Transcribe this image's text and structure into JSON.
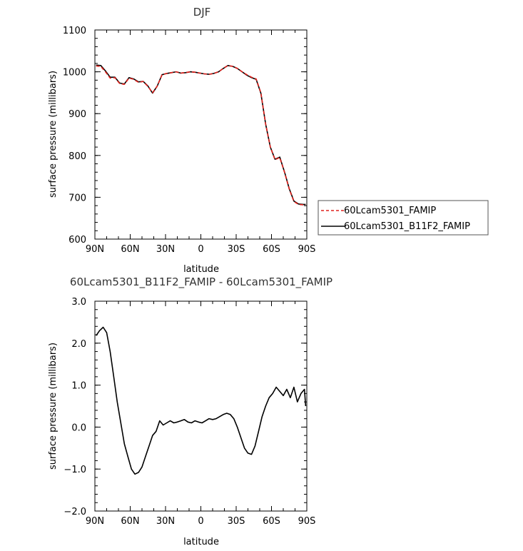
{
  "chart_data": [
    {
      "type": "line",
      "title": "DJF",
      "xlabel": "latitude",
      "ylabel": "surface pressure (millibars)",
      "xlim": [
        90,
        -90
      ],
      "ylim": [
        600,
        1100
      ],
      "xticks": [
        90,
        60,
        30,
        0,
        -30,
        -60,
        -90
      ],
      "xtick_labels": [
        "90N",
        "60N",
        "30N",
        "0",
        "30S",
        "60S",
        "90S"
      ],
      "yticks": [
        600,
        700,
        800,
        900,
        1000,
        1100
      ],
      "ytick_labels": [
        "600",
        "700",
        "800",
        "900",
        "1000",
        "1100"
      ],
      "legend_position": "outside-right",
      "x": [
        89,
        85,
        81,
        77,
        73,
        69,
        65,
        61,
        57,
        53,
        49,
        45,
        41,
        37,
        33,
        29,
        25,
        21,
        17,
        13,
        9,
        5,
        1,
        -3,
        -7,
        -11,
        -15,
        -19,
        -23,
        -27,
        -31,
        -35,
        -39,
        -43,
        -47,
        -51,
        -55,
        -59,
        -63,
        -67,
        -71,
        -75,
        -79,
        -83,
        -87,
        -89
      ],
      "series": [
        {
          "name": "60Lcam5301_FAMIP",
          "color": "#e0201b",
          "dash": "dashed",
          "values": [
            1014,
            1013,
            1000,
            985,
            986,
            972,
            970,
            985,
            982,
            975,
            977,
            965,
            950,
            966,
            993,
            996,
            998,
            1000,
            997,
            998,
            1000,
            999,
            997,
            995,
            994,
            996,
            1000,
            1008,
            1015,
            1013,
            1008,
            1000,
            993,
            987,
            983,
            950,
            875,
            820,
            790,
            795,
            760,
            720,
            690,
            683,
            682,
            682
          ]
        },
        {
          "name": "60Lcam5301_B11F2_FAMIP",
          "color": "#000000",
          "dash": "solid",
          "values": [
            1016,
            1015,
            1002,
            987,
            987,
            973,
            971,
            986,
            983,
            976,
            977,
            966,
            949,
            966,
            993,
            996,
            998,
            1000,
            997,
            998,
            1000,
            999,
            997,
            995,
            994,
            996,
            1000,
            1008,
            1015,
            1013,
            1008,
            1000,
            992,
            986,
            982,
            949,
            875,
            820,
            791,
            796,
            761,
            721,
            691,
            684,
            683,
            683
          ]
        }
      ]
    },
    {
      "type": "line",
      "title": "60Lcam5301_B11F2_FAMIP - 60Lcam5301_FAMIP",
      "xlabel": "latitude",
      "ylabel": "surface pressure (millibars)",
      "xlim": [
        90,
        -90
      ],
      "ylim": [
        -2.0,
        3.0
      ],
      "xticks": [
        90,
        60,
        30,
        0,
        -30,
        -60,
        -90
      ],
      "xtick_labels": [
        "90N",
        "60N",
        "30N",
        "0",
        "30S",
        "60S",
        "90S"
      ],
      "yticks": [
        -2.0,
        -1.0,
        0.0,
        1.0,
        2.0,
        3.0
      ],
      "ytick_labels": [
        "−2.0",
        "−1.0",
        "0.0",
        "1.0",
        "2.0",
        "3.0"
      ],
      "x": [
        89,
        86,
        83,
        80,
        77,
        74,
        71,
        68,
        65,
        62,
        59,
        56,
        53,
        50,
        47,
        44,
        41,
        38,
        35,
        32,
        29,
        26,
        23,
        20,
        17,
        14,
        11,
        8,
        5,
        2,
        -1,
        -4,
        -7,
        -10,
        -13,
        -16,
        -19,
        -22,
        -25,
        -28,
        -31,
        -34,
        -37,
        -40,
        -43,
        -46,
        -49,
        -52,
        -55,
        -58,
        -61,
        -64,
        -67,
        -70,
        -73,
        -76,
        -79,
        -82,
        -85,
        -88,
        -89
      ],
      "series": [
        {
          "name": "",
          "color": "#000000",
          "dash": "solid",
          "values": [
            2.18,
            2.3,
            2.38,
            2.25,
            1.8,
            1.2,
            0.6,
            0.1,
            -0.4,
            -0.7,
            -1.0,
            -1.12,
            -1.08,
            -0.95,
            -0.7,
            -0.45,
            -0.2,
            -0.1,
            0.15,
            0.05,
            0.1,
            0.15,
            0.1,
            0.12,
            0.15,
            0.18,
            0.12,
            0.1,
            0.15,
            0.12,
            0.1,
            0.15,
            0.2,
            0.18,
            0.2,
            0.25,
            0.3,
            0.33,
            0.3,
            0.2,
            0.0,
            -0.25,
            -0.5,
            -0.62,
            -0.65,
            -0.45,
            -0.1,
            0.25,
            0.5,
            0.7,
            0.8,
            0.95,
            0.85,
            0.75,
            0.9,
            0.7,
            0.95,
            0.6,
            0.8,
            0.9,
            0.5
          ]
        }
      ]
    }
  ]
}
